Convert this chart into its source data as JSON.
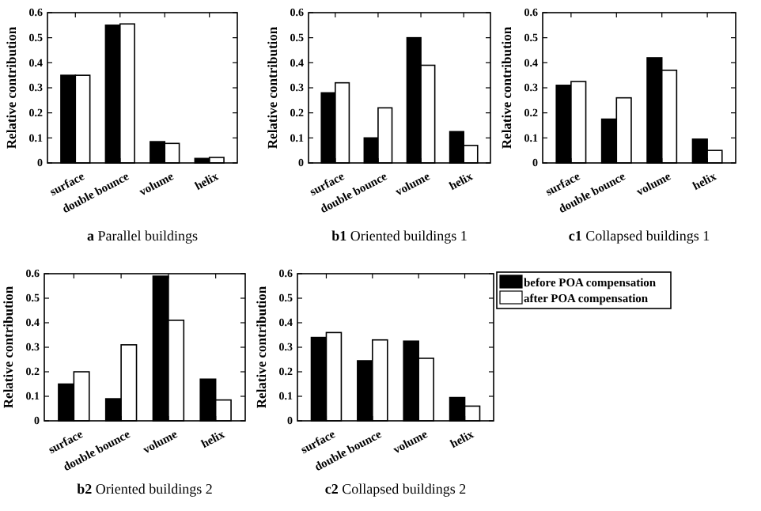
{
  "chart_data": [
    {
      "type": "bar",
      "title": "a Parallel buildings",
      "ylabel": "Relative contribution",
      "categories": [
        "surface",
        "double bounce",
        "volume",
        "helix"
      ],
      "ylim": [
        0,
        0.6
      ],
      "yticks": [
        0,
        0.1,
        0.2,
        0.3,
        0.4,
        0.5,
        0.6
      ],
      "grid": false,
      "legend": false,
      "series": [
        {
          "color": "#000000",
          "values": [
            0.35,
            0.55,
            0.085,
            0.018
          ]
        },
        {
          "color": "#ffffff",
          "values": [
            0.35,
            0.555,
            0.078,
            0.022
          ]
        }
      ]
    },
    {
      "type": "bar",
      "title": "b1 Oriented buildings 1",
      "ylabel": "Relative contribution",
      "categories": [
        "surface",
        "double bounce",
        "volume",
        "helix"
      ],
      "ylim": [
        0,
        0.6
      ],
      "yticks": [
        0,
        0.1,
        0.2,
        0.3,
        0.4,
        0.5,
        0.6
      ],
      "grid": false,
      "legend": false,
      "series": [
        {
          "color": "#000000",
          "values": [
            0.28,
            0.1,
            0.5,
            0.125
          ]
        },
        {
          "color": "#ffffff",
          "values": [
            0.32,
            0.22,
            0.39,
            0.07
          ]
        }
      ]
    },
    {
      "type": "bar",
      "title": "c1 Collapsed buildings 1",
      "ylabel": "Relative contribution",
      "categories": [
        "surface",
        "double bounce",
        "volume",
        "helix"
      ],
      "ylim": [
        0,
        0.6
      ],
      "yticks": [
        0,
        0.1,
        0.2,
        0.3,
        0.4,
        0.5,
        0.6
      ],
      "grid": false,
      "legend": false,
      "series": [
        {
          "color": "#000000",
          "values": [
            0.31,
            0.175,
            0.42,
            0.095
          ]
        },
        {
          "color": "#ffffff",
          "values": [
            0.325,
            0.26,
            0.37,
            0.05
          ]
        }
      ]
    },
    {
      "type": "bar",
      "title": "b2 Oriented buildings 2",
      "ylabel": "Relative contribution",
      "categories": [
        "surface",
        "double bounce",
        "volume",
        "helix"
      ],
      "ylim": [
        0,
        0.6
      ],
      "yticks": [
        0,
        0.1,
        0.2,
        0.3,
        0.4,
        0.5,
        0.6
      ],
      "grid": false,
      "legend": false,
      "series": [
        {
          "color": "#000000",
          "values": [
            0.15,
            0.09,
            0.59,
            0.17
          ]
        },
        {
          "color": "#ffffff",
          "values": [
            0.2,
            0.31,
            0.41,
            0.085
          ]
        }
      ]
    },
    {
      "type": "bar",
      "title": "c2 Collapsed buildings 2",
      "ylabel": "Relative contribution",
      "categories": [
        "surface",
        "double bounce",
        "volume",
        "helix"
      ],
      "ylim": [
        0,
        0.6
      ],
      "yticks": [
        0,
        0.1,
        0.2,
        0.3,
        0.4,
        0.5,
        0.6
      ],
      "grid": false,
      "legend": "right",
      "series": [
        {
          "name": "before POA compensation",
          "color": "#000000",
          "values": [
            0.34,
            0.245,
            0.325,
            0.095
          ]
        },
        {
          "name": "after POA compensation",
          "color": "#ffffff",
          "values": [
            0.36,
            0.33,
            0.255,
            0.06
          ]
        }
      ]
    }
  ]
}
